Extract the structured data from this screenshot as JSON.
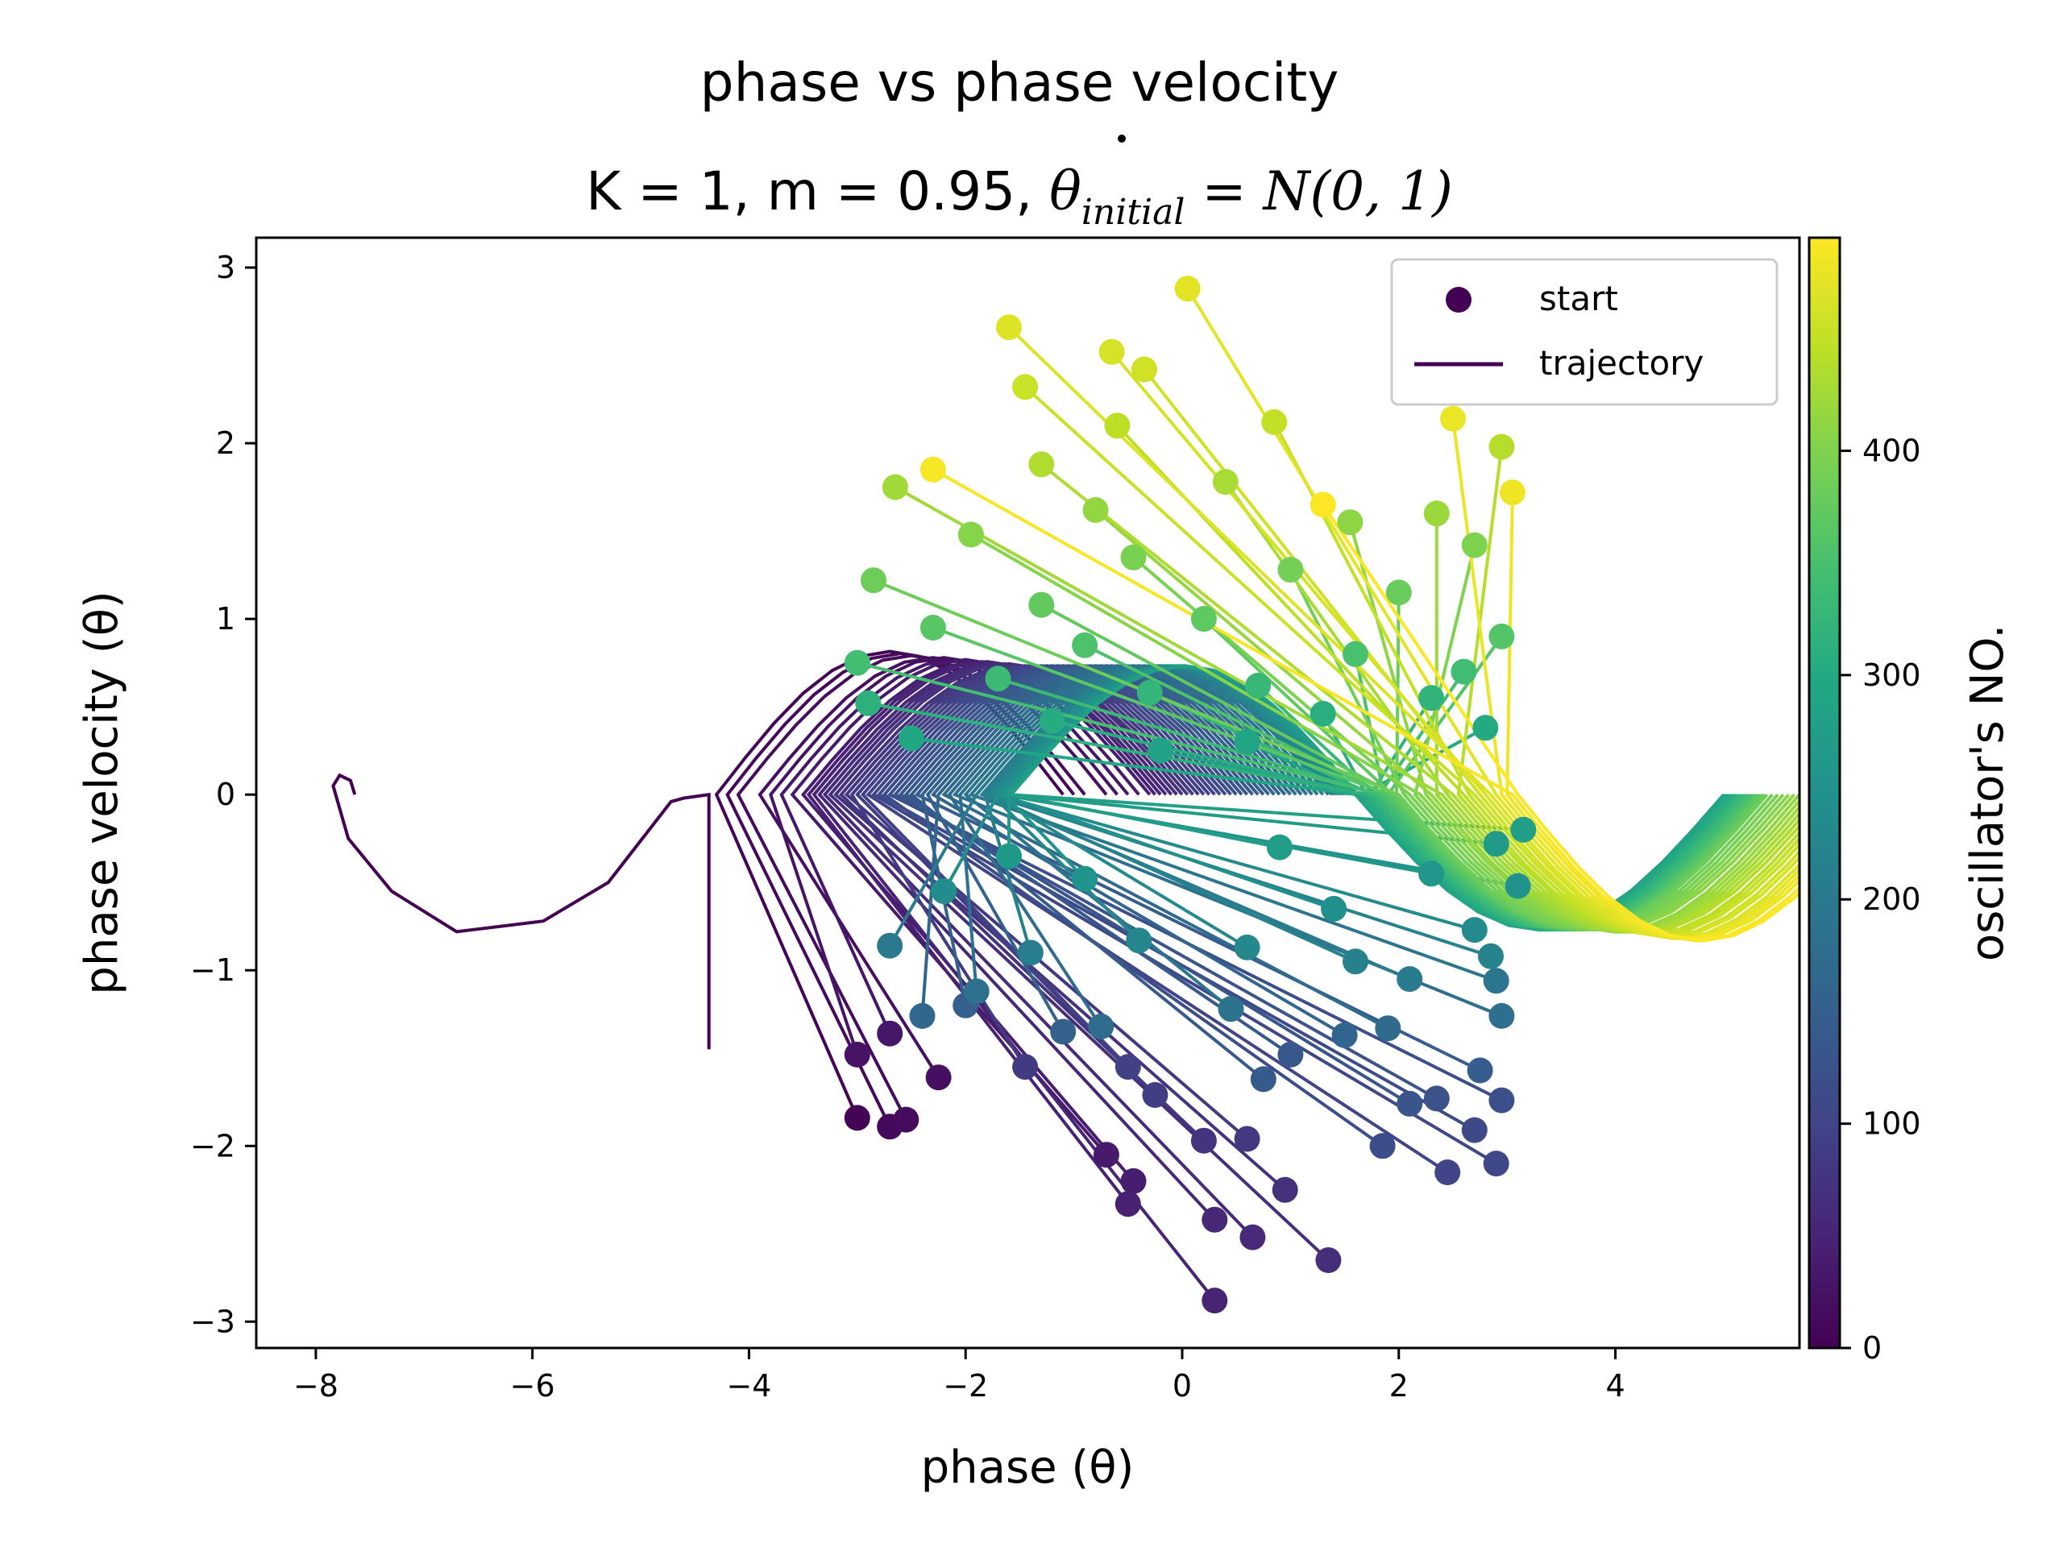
{
  "chart_data": {
    "type": "scatter",
    "title": {
      "line1": "phase vs phase velocity",
      "line2_prefix": "K = 1, m = 0.95, ",
      "line2_math_var": "θ",
      "line2_math_sub": "initial",
      "line2_math_rest": " = N(0, 1)"
    },
    "xlabel": "phase (θ)",
    "ylabel": "phase velocity (θ)",
    "xlim": [
      -8.55,
      5.7
    ],
    "ylim": [
      -3.15,
      3.17
    ],
    "xticks": [
      -8,
      -6,
      -4,
      -2,
      0,
      2,
      4
    ],
    "xtick_labels": [
      "−8",
      "−6",
      "−4",
      "−2",
      "0",
      "2",
      "4"
    ],
    "yticks": [
      -3,
      -2,
      -1,
      0,
      1,
      2,
      3
    ],
    "ytick_labels": [
      "−3",
      "−2",
      "−1",
      "0",
      "1",
      "2",
      "3"
    ],
    "grid": false,
    "legend": {
      "placement": "top-right",
      "entries": [
        {
          "label": "start",
          "marker": "circle",
          "color": "#440154"
        },
        {
          "label": "trajectory",
          "marker": "line",
          "color": "#440154"
        }
      ]
    },
    "colorbar": {
      "label": "oscillator's NO.",
      "colormap": "viridis",
      "range": [
        0,
        495
      ],
      "ticks": [
        0,
        100,
        200,
        300,
        400
      ],
      "tick_labels": [
        "0",
        "100",
        "200",
        "300",
        "400"
      ]
    },
    "highlighted_trajectory": {
      "oscillator": 0,
      "color": "#440154",
      "points": [
        [
          -4.37,
          -1.45
        ],
        [
          -4.37,
          0.0
        ],
        [
          -4.6,
          -0.02
        ],
        [
          -4.72,
          -0.04
        ],
        [
          -5.3,
          -0.5
        ],
        [
          -5.9,
          -0.72
        ],
        [
          -6.7,
          -0.78
        ],
        [
          -7.3,
          -0.55
        ],
        [
          -7.7,
          -0.25
        ],
        [
          -7.84,
          0.05
        ],
        [
          -7.78,
          0.11
        ],
        [
          -7.68,
          0.08
        ],
        [
          -7.64,
          0.0
        ]
      ]
    },
    "trajectories": [
      {
        "id": 5,
        "start": [
          -3.0,
          -1.84
        ],
        "turn": [
          -4.3,
          0.0
        ],
        "ext": 0.65
      },
      {
        "id": 10,
        "start": [
          -2.7,
          -1.89
        ],
        "turn": [
          -4.2,
          0.0
        ],
        "ext": 0.6
      },
      {
        "id": 15,
        "start": [
          -2.55,
          -1.85
        ],
        "turn": [
          -4.1,
          0.0
        ],
        "ext": 0.55
      },
      {
        "id": 20,
        "start": [
          -2.25,
          -1.61
        ],
        "turn": [
          -3.9,
          0.0
        ],
        "ext": 0.5
      },
      {
        "id": 25,
        "start": [
          -3.0,
          -1.48
        ],
        "turn": [
          -3.8,
          0.0
        ],
        "ext": 0.5
      },
      {
        "id": 30,
        "start": [
          -2.7,
          -1.36
        ],
        "turn": [
          -3.7,
          0.0
        ],
        "ext": 0.45
      },
      {
        "id": 35,
        "start": [
          -0.7,
          -2.05
        ],
        "turn": [
          -3.6,
          0.0
        ],
        "ext": 0.45
      },
      {
        "id": 40,
        "start": [
          -0.45,
          -2.2
        ],
        "turn": [
          -3.5,
          0.0
        ],
        "ext": 0.4
      },
      {
        "id": 45,
        "start": [
          -0.5,
          -2.33
        ],
        "turn": [
          -3.45,
          0.0
        ],
        "ext": 0.4
      },
      {
        "id": 50,
        "start": [
          0.3,
          -2.88
        ],
        "turn": [
          -3.4,
          0.0
        ],
        "ext": 0.4
      },
      {
        "id": 55,
        "start": [
          0.3,
          -2.42
        ],
        "turn": [
          -3.35,
          0.0
        ],
        "ext": 0.35
      },
      {
        "id": 60,
        "start": [
          0.65,
          -2.52
        ],
        "turn": [
          -3.3,
          0.0
        ],
        "ext": 0.35
      },
      {
        "id": 65,
        "start": [
          1.35,
          -2.65
        ],
        "turn": [
          -3.25,
          0.0
        ],
        "ext": 0.35
      },
      {
        "id": 70,
        "start": [
          0.95,
          -2.25
        ],
        "turn": [
          -3.2,
          0.0
        ],
        "ext": 0.35
      },
      {
        "id": 75,
        "start": [
          0.2,
          -1.97
        ],
        "turn": [
          -3.15,
          0.0
        ],
        "ext": 0.3
      },
      {
        "id": 80,
        "start": [
          0.6,
          -1.96
        ],
        "turn": [
          -3.1,
          0.0
        ],
        "ext": 0.3
      },
      {
        "id": 85,
        "start": [
          -1.45,
          -1.55
        ],
        "turn": [
          -3.05,
          0.0
        ],
        "ext": 0.3
      },
      {
        "id": 90,
        "start": [
          -0.25,
          -1.71
        ],
        "turn": [
          -3.0,
          0.0
        ],
        "ext": 0.3
      },
      {
        "id": 95,
        "start": [
          -0.5,
          -1.55
        ],
        "turn": [
          -2.95,
          0.0
        ],
        "ext": 0.3
      },
      {
        "id": 100,
        "start": [
          2.45,
          -2.15
        ],
        "turn": [
          -2.9,
          0.0
        ],
        "ext": 0.3
      },
      {
        "id": 105,
        "start": [
          2.9,
          -2.1
        ],
        "turn": [
          -2.85,
          0.0
        ],
        "ext": 0.3
      },
      {
        "id": 110,
        "start": [
          2.7,
          -1.91
        ],
        "turn": [
          -2.8,
          0.0
        ],
        "ext": 0.3
      },
      {
        "id": 115,
        "start": [
          1.85,
          -2.0
        ],
        "turn": [
          -2.75,
          0.0
        ],
        "ext": 0.3
      },
      {
        "id": 120,
        "start": [
          2.95,
          -1.74
        ],
        "turn": [
          -2.7,
          0.0
        ],
        "ext": 0.3
      },
      {
        "id": 125,
        "start": [
          2.35,
          -1.73
        ],
        "turn": [
          -2.65,
          0.0
        ],
        "ext": 0.3
      },
      {
        "id": 130,
        "start": [
          2.1,
          -1.76
        ],
        "turn": [
          -2.6,
          0.0
        ],
        "ext": 0.3
      },
      {
        "id": 135,
        "start": [
          1.0,
          -1.48
        ],
        "turn": [
          -2.55,
          0.0
        ],
        "ext": 0.3
      },
      {
        "id": 140,
        "start": [
          0.75,
          -1.62
        ],
        "turn": [
          -2.5,
          0.0
        ],
        "ext": 0.3
      },
      {
        "id": 145,
        "start": [
          2.75,
          -1.57
        ],
        "turn": [
          -2.45,
          0.0
        ],
        "ext": 0.3
      },
      {
        "id": 150,
        "start": [
          -2.0,
          -1.2
        ],
        "turn": [
          -2.4,
          0.0
        ],
        "ext": 0.3
      },
      {
        "id": 155,
        "start": [
          -1.1,
          -1.35
        ],
        "turn": [
          -2.35,
          0.0
        ],
        "ext": 0.3
      },
      {
        "id": 160,
        "start": [
          1.5,
          -1.37
        ],
        "turn": [
          -2.3,
          0.0
        ],
        "ext": 0.3
      },
      {
        "id": 165,
        "start": [
          -2.4,
          -1.26
        ],
        "turn": [
          -2.25,
          0.0
        ],
        "ext": 0.3
      },
      {
        "id": 170,
        "start": [
          1.9,
          -1.33
        ],
        "turn": [
          -2.2,
          0.0
        ],
        "ext": 0.3
      },
      {
        "id": 175,
        "start": [
          -0.75,
          -1.32
        ],
        "turn": [
          -2.15,
          0.0
        ],
        "ext": 0.3
      },
      {
        "id": 180,
        "start": [
          2.95,
          -1.26
        ],
        "turn": [
          -2.1,
          0.0
        ],
        "ext": 0.3
      },
      {
        "id": 185,
        "start": [
          -1.9,
          -1.12
        ],
        "turn": [
          -2.05,
          0.0
        ],
        "ext": 0.3
      },
      {
        "id": 190,
        "start": [
          0.45,
          -1.22
        ],
        "turn": [
          -2.0,
          0.0
        ],
        "ext": 0.3
      },
      {
        "id": 195,
        "start": [
          2.9,
          -1.06
        ],
        "turn": [
          -1.95,
          0.0
        ],
        "ext": 0.3
      },
      {
        "id": 200,
        "start": [
          -2.7,
          -0.86
        ],
        "turn": [
          -1.9,
          0.0
        ],
        "ext": 0.3
      },
      {
        "id": 205,
        "start": [
          2.1,
          -1.05
        ],
        "turn": [
          -1.85,
          0.0
        ],
        "ext": 0.3
      },
      {
        "id": 210,
        "start": [
          -1.4,
          -0.9
        ],
        "turn": [
          -1.82,
          0.0
        ],
        "ext": 0.3
      },
      {
        "id": 215,
        "start": [
          1.6,
          -0.95
        ],
        "turn": [
          -1.8,
          0.0
        ],
        "ext": 0.3
      },
      {
        "id": 220,
        "start": [
          2.85,
          -0.92
        ],
        "turn": [
          -1.78,
          0.0
        ],
        "ext": 0.3
      },
      {
        "id": 225,
        "start": [
          -0.4,
          -0.83
        ],
        "turn": [
          -1.76,
          0.0
        ],
        "ext": 0.3
      },
      {
        "id": 230,
        "start": [
          0.6,
          -0.87
        ],
        "turn": [
          -1.74,
          0.0
        ],
        "ext": 0.3
      },
      {
        "id": 235,
        "start": [
          2.7,
          -0.77
        ],
        "turn": [
          -1.72,
          0.0
        ],
        "ext": 0.3
      },
      {
        "id": 240,
        "start": [
          -2.2,
          -0.55
        ],
        "turn": [
          -1.7,
          0.0
        ],
        "ext": 0.3
      },
      {
        "id": 245,
        "start": [
          1.4,
          -0.65
        ],
        "turn": [
          -1.68,
          0.0
        ],
        "ext": 0.3
      },
      {
        "id": 250,
        "start": [
          3.1,
          -0.52
        ],
        "turn": [
          -1.66,
          0.0
        ],
        "ext": 0.3
      },
      {
        "id": 255,
        "start": [
          -0.9,
          -0.48
        ],
        "turn": [
          -1.64,
          0.0
        ],
        "ext": 0.3
      },
      {
        "id": 260,
        "start": [
          2.3,
          -0.45
        ],
        "turn": [
          -1.62,
          0.0
        ],
        "ext": 0.3
      },
      {
        "id": 265,
        "start": [
          -1.6,
          -0.35
        ],
        "turn": [
          -1.6,
          0.0
        ],
        "ext": 0.3
      },
      {
        "id": 270,
        "start": [
          2.9,
          -0.28
        ],
        "turn": [
          -1.6,
          0.0
        ],
        "ext": 0.3
      },
      {
        "id": 275,
        "start": [
          0.9,
          -0.3
        ],
        "turn": [
          -1.58,
          0.0
        ],
        "ext": 0.3
      },
      {
        "id": 280,
        "start": [
          3.15,
          -0.2
        ],
        "turn": [
          -1.58,
          0.0
        ],
        "ext": 0.3
      },
      {
        "id": 285,
        "start": [
          -0.2,
          0.25
        ],
        "turn": [
          1.6,
          0.0
        ],
        "ext": 0.3
      },
      {
        "id": 290,
        "start": [
          0.6,
          0.3
        ],
        "turn": [
          1.62,
          0.0
        ],
        "ext": 0.3
      },
      {
        "id": 295,
        "start": [
          -2.5,
          0.32
        ],
        "turn": [
          1.64,
          0.0
        ],
        "ext": 0.3
      },
      {
        "id": 300,
        "start": [
          2.8,
          0.38
        ],
        "turn": [
          1.66,
          0.0
        ],
        "ext": 0.3
      },
      {
        "id": 305,
        "start": [
          -1.2,
          0.42
        ],
        "turn": [
          1.68,
          0.0
        ],
        "ext": 0.3
      },
      {
        "id": 310,
        "start": [
          1.3,
          0.46
        ],
        "turn": [
          1.7,
          0.0
        ],
        "ext": 0.3
      },
      {
        "id": 315,
        "start": [
          -2.9,
          0.52
        ],
        "turn": [
          1.72,
          0.0
        ],
        "ext": 0.3
      },
      {
        "id": 320,
        "start": [
          2.3,
          0.55
        ],
        "turn": [
          1.74,
          0.0
        ],
        "ext": 0.3
      },
      {
        "id": 325,
        "start": [
          -0.3,
          0.58
        ],
        "turn": [
          1.76,
          0.0
        ],
        "ext": 0.3
      },
      {
        "id": 330,
        "start": [
          0.7,
          0.62
        ],
        "turn": [
          1.78,
          0.0
        ],
        "ext": 0.3
      },
      {
        "id": 335,
        "start": [
          -1.7,
          0.66
        ],
        "turn": [
          1.8,
          0.0
        ],
        "ext": 0.3
      },
      {
        "id": 340,
        "start": [
          2.6,
          0.7
        ],
        "turn": [
          1.82,
          0.0
        ],
        "ext": 0.3
      },
      {
        "id": 345,
        "start": [
          -3.0,
          0.75
        ],
        "turn": [
          1.84,
          0.0
        ],
        "ext": 0.3
      },
      {
        "id": 350,
        "start": [
          1.6,
          0.8
        ],
        "turn": [
          1.86,
          0.0
        ],
        "ext": 0.3
      },
      {
        "id": 355,
        "start": [
          -0.9,
          0.85
        ],
        "turn": [
          1.88,
          0.0
        ],
        "ext": 0.3
      },
      {
        "id": 360,
        "start": [
          2.95,
          0.9
        ],
        "turn": [
          1.9,
          0.0
        ],
        "ext": 0.3
      },
      {
        "id": 365,
        "start": [
          -2.3,
          0.95
        ],
        "turn": [
          1.92,
          0.0
        ],
        "ext": 0.3
      },
      {
        "id": 370,
        "start": [
          0.2,
          1.0
        ],
        "turn": [
          1.94,
          0.0
        ],
        "ext": 0.3
      },
      {
        "id": 375,
        "start": [
          -1.3,
          1.08
        ],
        "turn": [
          1.96,
          0.0
        ],
        "ext": 0.3
      },
      {
        "id": 380,
        "start": [
          2.0,
          1.15
        ],
        "turn": [
          1.98,
          0.0
        ],
        "ext": 0.3
      },
      {
        "id": 385,
        "start": [
          -2.85,
          1.22
        ],
        "turn": [
          2.0,
          0.0
        ],
        "ext": 0.3
      },
      {
        "id": 390,
        "start": [
          1.0,
          1.28
        ],
        "turn": [
          2.05,
          0.0
        ],
        "ext": 0.3
      },
      {
        "id": 395,
        "start": [
          -0.45,
          1.35
        ],
        "turn": [
          2.1,
          0.0
        ],
        "ext": 0.3
      },
      {
        "id": 400,
        "start": [
          2.7,
          1.42
        ],
        "turn": [
          2.15,
          0.0
        ],
        "ext": 0.3
      },
      {
        "id": 405,
        "start": [
          -1.95,
          1.48
        ],
        "turn": [
          2.2,
          0.0
        ],
        "ext": 0.3
      },
      {
        "id": 410,
        "start": [
          1.55,
          1.55
        ],
        "turn": [
          2.25,
          0.0
        ],
        "ext": 0.3
      },
      {
        "id": 415,
        "start": [
          -0.8,
          1.62
        ],
        "turn": [
          2.3,
          0.0
        ],
        "ext": 0.35
      },
      {
        "id": 420,
        "start": [
          2.35,
          1.6
        ],
        "turn": [
          2.35,
          0.0
        ],
        "ext": 0.35
      },
      {
        "id": 425,
        "start": [
          -2.65,
          1.75
        ],
        "turn": [
          2.4,
          0.0
        ],
        "ext": 0.35
      },
      {
        "id": 430,
        "start": [
          0.4,
          1.78
        ],
        "turn": [
          2.45,
          0.0
        ],
        "ext": 0.35
      },
      {
        "id": 435,
        "start": [
          -1.3,
          1.88
        ],
        "turn": [
          2.5,
          0.0
        ],
        "ext": 0.35
      },
      {
        "id": 440,
        "start": [
          2.95,
          1.98
        ],
        "turn": [
          2.55,
          0.0
        ],
        "ext": 0.35
      },
      {
        "id": 445,
        "start": [
          -0.6,
          2.1
        ],
        "turn": [
          2.6,
          0.0
        ],
        "ext": 0.4
      },
      {
        "id": 450,
        "start": [
          0.85,
          2.12
        ],
        "turn": [
          2.65,
          0.0
        ],
        "ext": 0.4
      },
      {
        "id": 455,
        "start": [
          -1.45,
          2.32
        ],
        "turn": [
          2.7,
          0.0
        ],
        "ext": 0.4
      },
      {
        "id": 460,
        "start": [
          -0.35,
          2.42
        ],
        "turn": [
          2.75,
          0.0
        ],
        "ext": 0.45
      },
      {
        "id": 465,
        "start": [
          -0.65,
          2.52
        ],
        "turn": [
          2.8,
          0.0
        ],
        "ext": 0.45
      },
      {
        "id": 470,
        "start": [
          -1.6,
          2.66
        ],
        "turn": [
          2.85,
          0.0
        ],
        "ext": 0.5
      },
      {
        "id": 475,
        "start": [
          0.05,
          2.88
        ],
        "turn": [
          2.9,
          0.0
        ],
        "ext": 0.5
      },
      {
        "id": 480,
        "start": [
          2.5,
          2.14
        ],
        "turn": [
          2.95,
          0.0
        ],
        "ext": 0.5
      },
      {
        "id": 485,
        "start": [
          3.05,
          1.72
        ],
        "turn": [
          3.0,
          0.0
        ],
        "ext": 0.5
      },
      {
        "id": 490,
        "start": [
          -2.3,
          1.85
        ],
        "turn": [
          3.05,
          0.0
        ],
        "ext": 0.55
      },
      {
        "id": 495,
        "start": [
          1.3,
          1.65
        ],
        "turn": [
          3.1,
          0.0
        ],
        "ext": 0.55
      }
    ]
  }
}
